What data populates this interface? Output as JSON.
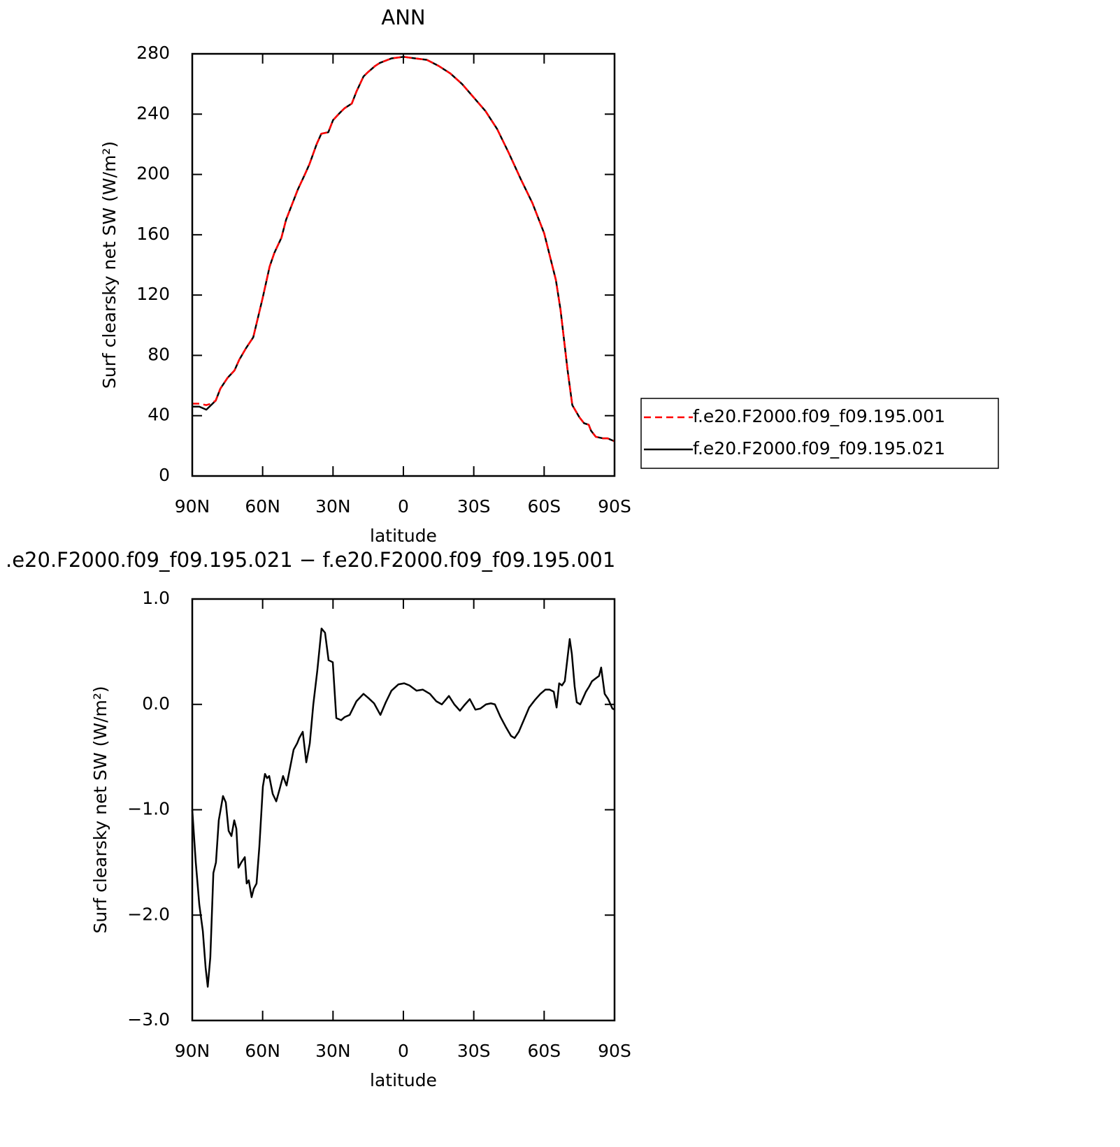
{
  "chart_data": [
    {
      "type": "line",
      "title": "ANN",
      "xlabel": "latitude",
      "ylabel": "Surf clearsky net SW (W/m²)",
      "x": [
        90,
        87,
        84,
        82,
        80,
        78,
        75,
        72,
        70,
        67,
        64,
        62,
        60,
        57,
        55,
        52,
        50,
        47,
        45,
        42,
        40,
        37,
        35,
        32,
        30,
        27,
        25,
        22,
        20,
        17,
        15,
        12,
        10,
        5,
        0,
        -5,
        -10,
        -15,
        -20,
        -25,
        -30,
        -35,
        -40,
        -45,
        -50,
        -55,
        -60,
        -65,
        -67,
        -70,
        -72,
        -75,
        -77,
        -79,
        -80,
        -82,
        -85,
        -87,
        -90
      ],
      "series": [
        {
          "name": "f.e20.F2000.f09_f09.195.001",
          "color": "#ff0000",
          "linestyle": "dashed",
          "values": [
            48,
            48,
            47,
            48,
            50,
            58,
            65,
            70,
            77,
            85,
            92,
            105,
            118,
            139,
            148,
            158,
            170,
            182,
            190,
            200,
            207,
            220,
            227,
            228,
            236,
            241,
            244,
            247,
            255,
            265,
            268,
            272,
            274,
            277,
            278,
            277,
            276,
            272,
            267,
            260,
            251,
            242,
            230,
            214,
            197,
            181,
            161,
            130,
            110,
            70,
            47,
            39,
            35,
            34,
            30,
            26,
            25,
            25,
            23
          ]
        },
        {
          "name": "f.e20.F2000.f09_f09.195.021",
          "color": "#000000",
          "linestyle": "solid",
          "values": [
            46,
            46,
            44,
            47,
            50,
            58,
            65,
            70,
            77,
            85,
            92,
            105,
            118,
            139,
            148,
            158,
            170,
            182,
            190,
            200,
            207,
            220,
            227,
            228,
            236,
            241,
            244,
            247,
            255,
            265,
            268,
            272,
            274,
            277,
            278,
            277,
            276,
            272,
            267,
            260,
            251,
            242,
            230,
            214,
            197,
            181,
            161,
            130,
            110,
            70,
            47,
            39,
            35,
            34,
            30,
            26,
            25,
            25,
            23
          ]
        }
      ],
      "xlim": [
        90,
        -90
      ],
      "xticks": [
        {
          "value": 90,
          "label": "90N"
        },
        {
          "value": 60,
          "label": "60N"
        },
        {
          "value": 30,
          "label": "30N"
        },
        0,
        {
          "value": -30,
          "label": "30S"
        },
        {
          "value": -60,
          "label": "60S"
        },
        {
          "value": -90,
          "label": "90S"
        }
      ],
      "ylim": [
        0,
        280
      ],
      "yticks": [
        0,
        40,
        80,
        120,
        160,
        200,
        240,
        280
      ],
      "legend": "right"
    },
    {
      "type": "line",
      "title": ".e20.F2000.f09_f09.195.021 − f.e20.F2000.f09_f09.195.001",
      "xlabel": "latitude",
      "ylabel": "Surf clearsky net SW (W/m²)",
      "x": [
        90,
        88.5,
        87,
        85.5,
        84.3,
        83.4,
        82.3,
        81,
        79.9,
        78.7,
        76.9,
        75.7,
        74.5,
        73.3,
        72.1,
        71.2,
        70.3,
        69.1,
        67.6,
        66.8,
        65.9,
        64.7,
        63.8,
        62.6,
        61.4,
        59.9,
        59,
        58.1,
        57.2,
        55.7,
        54.2,
        52.7,
        51.3,
        49.8,
        48.3,
        46.8,
        45.3,
        44.4,
        42.9,
        41.4,
        39.9,
        38.4,
        36.7,
        34.9,
        33.4,
        31.9,
        30.1,
        28.6,
        26.5,
        25,
        22.9,
        20,
        17,
        14.9,
        12.5,
        9.8,
        7.5,
        5.1,
        2.1,
        -0.3,
        -2.6,
        -5.6,
        -8.3,
        -11.3,
        -14,
        -16.4,
        -19.4,
        -21.7,
        -24.1,
        -25.9,
        -28.3,
        -30.7,
        -32.8,
        -35.2,
        -37.3,
        -39,
        -41.4,
        -43.8,
        -45.9,
        -47.4,
        -49.2,
        -51.5,
        -53.6,
        -56,
        -58.4,
        -60.5,
        -62.3,
        -64.1,
        -65.3,
        -66.4,
        -67.6,
        -68.8,
        -70,
        -70.9,
        -71.8,
        -73,
        -73.9,
        -75.4,
        -77.8,
        -79.2,
        -80.4,
        -82.2,
        -83.4,
        -84.3,
        -85.8,
        -87.3,
        -89.1,
        -90
      ],
      "series": [
        {
          "name": null,
          "color": "#000000",
          "linestyle": "solid",
          "values": [
            -1,
            -1.5,
            -1.9,
            -2.15,
            -2.5,
            -2.68,
            -2.4,
            -1.6,
            -1.5,
            -1.1,
            -0.87,
            -0.93,
            -1.2,
            -1.25,
            -1.1,
            -1.18,
            -1.55,
            -1.5,
            -1.45,
            -1.7,
            -1.67,
            -1.83,
            -1.75,
            -1.7,
            -1.35,
            -0.78,
            -0.66,
            -0.7,
            -0.68,
            -0.85,
            -0.92,
            -0.8,
            -0.68,
            -0.77,
            -0.6,
            -0.43,
            -0.37,
            -0.32,
            -0.26,
            -0.55,
            -0.37,
            0,
            0.32,
            0.72,
            0.68,
            0.42,
            0.4,
            -0.13,
            -0.15,
            -0.12,
            -0.1,
            0.03,
            0.1,
            0.06,
            0.01,
            -0.1,
            0.02,
            0.13,
            0.19,
            0.2,
            0.18,
            0.13,
            0.14,
            0.1,
            0.03,
            0,
            0.08,
            0,
            -0.06,
            -0.01,
            0.05,
            -0.05,
            -0.04,
            0,
            0.01,
            0,
            -0.12,
            -0.22,
            -0.3,
            -0.32,
            -0.26,
            -0.14,
            -0.03,
            0.04,
            0.1,
            0.14,
            0.14,
            0.12,
            -0.03,
            0.2,
            0.18,
            0.22,
            0.45,
            0.62,
            0.48,
            0.17,
            0.02,
            0,
            0.12,
            0.17,
            0.22,
            0.25,
            0.27,
            0.35,
            0.1,
            0.05,
            -0.04,
            -0.05
          ]
        }
      ],
      "xlim": [
        90,
        -90
      ],
      "xticks": [
        {
          "value": 90,
          "label": "90N"
        },
        {
          "value": 60,
          "label": "60N"
        },
        {
          "value": 30,
          "label": "30N"
        },
        0,
        {
          "value": -30,
          "label": "30S"
        },
        {
          "value": -60,
          "label": "60S"
        },
        {
          "value": -90,
          "label": "90S"
        }
      ],
      "ylim": [
        -3,
        1
      ],
      "yticks": [
        {
          "value": 1,
          "label": "1.0"
        },
        {
          "value": 0,
          "label": "0.0"
        },
        {
          "value": -1,
          "label": "−1.0"
        },
        {
          "value": -2,
          "label": "−2.0"
        },
        {
          "value": -3,
          "label": "−3.0"
        }
      ]
    }
  ]
}
